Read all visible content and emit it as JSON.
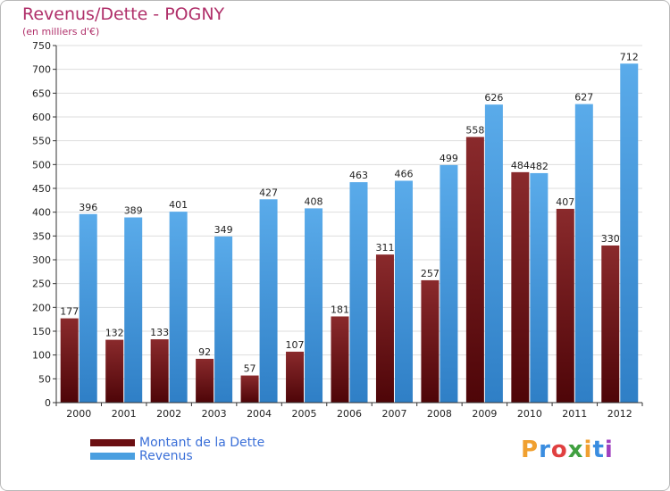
{
  "title": "Revenus/Dette - POGNY",
  "subtitle": "(en milliers d'€)",
  "brand": {
    "text": "Proxiti",
    "colors": [
      "#f0a030",
      "#3a8de0",
      "#e04040",
      "#40a040",
      "#f0a030",
      "#3a8de0",
      "#a040c0"
    ]
  },
  "chart_data": {
    "type": "bar",
    "categories": [
      "2000",
      "2001",
      "2002",
      "2003",
      "2004",
      "2005",
      "2006",
      "2007",
      "2008",
      "2009",
      "2010",
      "2011",
      "2012"
    ],
    "series": [
      {
        "name": "Montant de la Dette",
        "color": "#6b0f12",
        "values": [
          177,
          132,
          133,
          92,
          57,
          107,
          181,
          311,
          257,
          558,
          484,
          407,
          330
        ]
      },
      {
        "name": "Revenus",
        "color": "#4a9fe0",
        "values": [
          396,
          389,
          401,
          349,
          427,
          408,
          463,
          466,
          499,
          626,
          482,
          627,
          712
        ]
      }
    ],
    "ylim": [
      0,
      750
    ],
    "yticks": [
      0,
      50,
      100,
      150,
      200,
      250,
      300,
      350,
      400,
      450,
      500,
      550,
      600,
      650,
      700,
      750
    ],
    "grid": true,
    "legend": "bottom-left"
  }
}
